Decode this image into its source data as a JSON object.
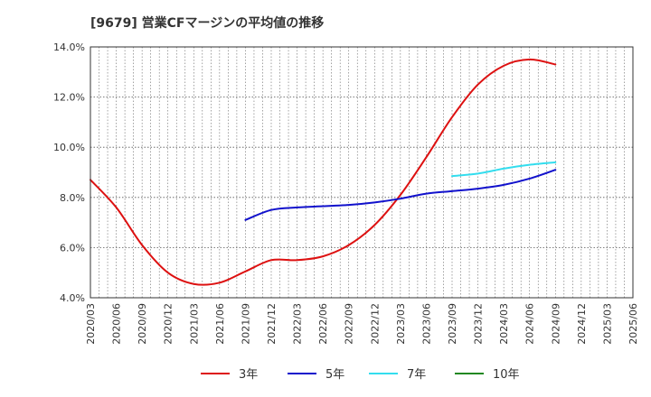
{
  "chart_data": {
    "type": "line",
    "title": "[9679]  営業CFマージンの平均値の推移",
    "xlabel": "",
    "ylabel": "",
    "ylim": [
      4.0,
      14.0
    ],
    "y_ticks": [
      "4.0%",
      "6.0%",
      "8.0%",
      "10.0%",
      "12.0%",
      "14.0%"
    ],
    "x_ticks": [
      "2020/03",
      "2020/06",
      "2020/09",
      "2020/12",
      "2021/03",
      "2021/06",
      "2021/09",
      "2021/12",
      "2022/03",
      "2022/06",
      "2022/09",
      "2022/12",
      "2023/03",
      "2023/06",
      "2023/09",
      "2023/12",
      "2024/03",
      "2024/06",
      "2024/09",
      "2024/12",
      "2025/03",
      "2025/06"
    ],
    "grid": true,
    "legend_position": "bottom",
    "colors": {
      "3年": "#dd1111",
      "5年": "#1111cc",
      "7年": "#33ddee",
      "10年": "#228822"
    },
    "series": [
      {
        "name": "3年",
        "points": [
          [
            "2020/03",
            8.7
          ],
          [
            "2020/06",
            7.6
          ],
          [
            "2020/09",
            6.1
          ],
          [
            "2020/12",
            5.0
          ],
          [
            "2021/03",
            4.55
          ],
          [
            "2021/06",
            4.6
          ],
          [
            "2021/09",
            5.05
          ],
          [
            "2021/12",
            5.5
          ],
          [
            "2022/03",
            5.5
          ],
          [
            "2022/06",
            5.65
          ],
          [
            "2022/09",
            6.1
          ],
          [
            "2022/12",
            6.9
          ],
          [
            "2023/03",
            8.1
          ],
          [
            "2023/06",
            9.6
          ],
          [
            "2023/09",
            11.2
          ],
          [
            "2023/12",
            12.5
          ],
          [
            "2024/03",
            13.25
          ],
          [
            "2024/06",
            13.5
          ],
          [
            "2024/09",
            13.3
          ]
        ]
      },
      {
        "name": "5年",
        "points": [
          [
            "2021/09",
            7.1
          ],
          [
            "2021/12",
            7.5
          ],
          [
            "2022/03",
            7.6
          ],
          [
            "2022/06",
            7.65
          ],
          [
            "2022/09",
            7.7
          ],
          [
            "2022/12",
            7.8
          ],
          [
            "2023/03",
            7.95
          ],
          [
            "2023/06",
            8.15
          ],
          [
            "2023/09",
            8.25
          ],
          [
            "2023/12",
            8.35
          ],
          [
            "2024/03",
            8.5
          ],
          [
            "2024/06",
            8.75
          ],
          [
            "2024/09",
            9.1
          ]
        ]
      },
      {
        "name": "7年",
        "points": [
          [
            "2023/09",
            8.85
          ],
          [
            "2023/12",
            8.95
          ],
          [
            "2024/03",
            9.15
          ],
          [
            "2024/06",
            9.3
          ],
          [
            "2024/09",
            9.4
          ]
        ]
      },
      {
        "name": "10年",
        "points": []
      }
    ]
  }
}
